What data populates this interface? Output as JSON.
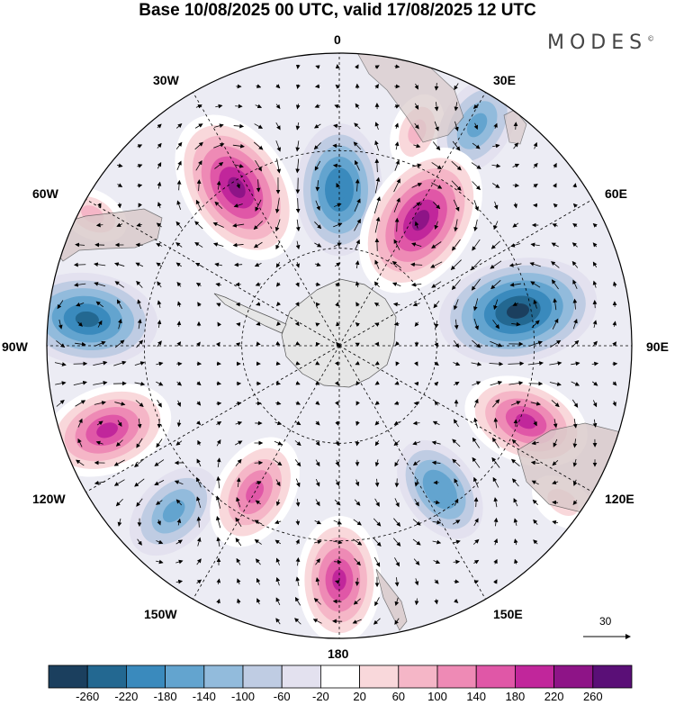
{
  "title": "Base 10/08/2025 00 UTC, valid 17/08/2025 12 UTC",
  "brand": "MODES",
  "brand_mark": "©",
  "longitude_labels": {
    "lon_0": "0",
    "lon_30e": "30E",
    "lon_60e": "60E",
    "lon_90e": "90E",
    "lon_120e": "120E",
    "lon_150e": "150E",
    "lon_180": "180",
    "lon_150w": "150W",
    "lon_120w": "120W",
    "lon_90w": "90W",
    "lon_60w": "60W",
    "lon_30w": "30W"
  },
  "vector_reference": "30",
  "colorbar": {
    "levels": [
      "-260",
      "-220",
      "-180",
      "-140",
      "-100",
      "-60",
      "-20",
      "20",
      "60",
      "100",
      "140",
      "180",
      "220",
      "260"
    ],
    "colors": [
      "#1b3f5e",
      "#236891",
      "#3a8abd",
      "#63a4cf",
      "#92bbdc",
      "#bfcce3",
      "#e3e1ef",
      "#ffffff",
      "#f9d8db",
      "#f5b6c7",
      "#ee8ab5",
      "#e057a7",
      "#c1269b",
      "#8e1487",
      "#5a0f77"
    ]
  },
  "chart_data": {
    "type": "polar-stereographic-map",
    "hemisphere": "south",
    "field": "anomaly contours with wind vectors",
    "contour_levels": [
      -260,
      -220,
      -180,
      -140,
      -100,
      -60,
      -20,
      20,
      60,
      100,
      140,
      180,
      220,
      260
    ],
    "anomaly_centers": [
      {
        "name": "neg-0",
        "lon_deg": 0,
        "colat_deg": 48,
        "value": -200
      },
      {
        "name": "pos-20e",
        "lon_deg": 20,
        "colat_deg": 70,
        "value": 80
      },
      {
        "name": "neg-30e",
        "lon_deg": 32,
        "colat_deg": 80,
        "value": -140
      },
      {
        "name": "pos-35w",
        "lon_deg": -33,
        "colat_deg": 58,
        "value": 260
      },
      {
        "name": "pos-33e",
        "lon_deg": 33,
        "colat_deg": 46,
        "value": 260
      },
      {
        "name": "neg-80e",
        "lon_deg": 79,
        "colat_deg": 56,
        "value": -260
      },
      {
        "name": "neg-85w",
        "lon_deg": -84,
        "colat_deg": 78,
        "value": -220
      },
      {
        "name": "pos-110e",
        "lon_deg": 112,
        "colat_deg": 62,
        "value": 190
      },
      {
        "name": "pos-110w",
        "lon_deg": -110,
        "colat_deg": 76,
        "value": 200
      },
      {
        "name": "neg-135w",
        "lon_deg": -135,
        "colat_deg": 72,
        "value": -140
      },
      {
        "name": "pos-150w",
        "lon_deg": -150,
        "colat_deg": 52,
        "value": 170
      },
      {
        "name": "neg-145e",
        "lon_deg": 145,
        "colat_deg": 54,
        "value": -150
      },
      {
        "name": "pos-180",
        "lon_deg": 180,
        "colat_deg": 72,
        "value": 190
      },
      {
        "name": "pos-65w",
        "lon_deg": -62,
        "colat_deg": 86,
        "value": 70
      },
      {
        "name": "pos-125e",
        "lon_deg": 125,
        "colat_deg": 84,
        "value": 60
      }
    ]
  }
}
